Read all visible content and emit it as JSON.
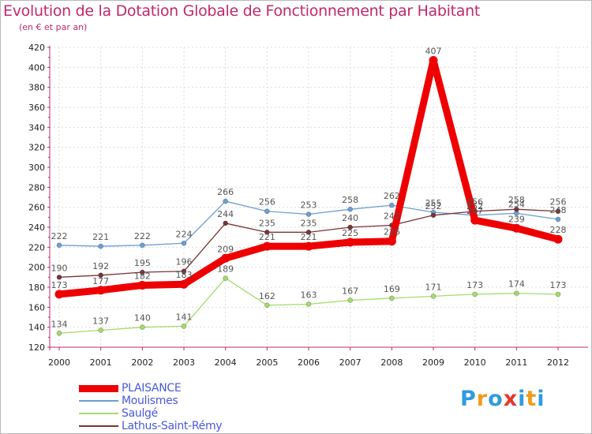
{
  "title": "Evolution de la Dotation Globale de Fonctionnement par Habitant",
  "subtitle": "(en € et par an)",
  "brand": {
    "letters": [
      "P",
      "r",
      "o",
      "x",
      "i",
      "t",
      "i"
    ],
    "colors": [
      "#2f9be0",
      "#f29a1b",
      "#2f9be0",
      "#e8362c",
      "#2f9be0",
      "#f29a1b",
      "#2f9be0"
    ]
  },
  "chart_data": {
    "type": "line",
    "title": "Evolution de la Dotation Globale de Fonctionnement par Habitant",
    "subtitle": "(en € et par an)",
    "xlabel": "",
    "ylabel": "",
    "x": [
      "2000",
      "2001",
      "2002",
      "2003",
      "2004",
      "2005",
      "2006",
      "2007",
      "2008",
      "2009",
      "2010",
      "2011",
      "2012"
    ],
    "ylim": [
      120,
      420
    ],
    "yticks": [
      120,
      140,
      160,
      180,
      200,
      220,
      240,
      260,
      280,
      300,
      320,
      340,
      360,
      380,
      400,
      420
    ],
    "grid": true,
    "legend_position": "bottom-left",
    "series": [
      {
        "name": "Moulismes",
        "color": "#6c9fd4",
        "values": [
          222,
          221,
          222,
          224,
          266,
          256,
          253,
          258,
          262,
          255,
          252,
          254,
          248
        ],
        "labels": [
          "222",
          "221",
          "222",
          "224",
          "266",
          "256",
          "253",
          "258",
          "262",
          "255",
          "252",
          "254",
          "248"
        ]
      },
      {
        "name": "Saulgé",
        "color": "#a4dc6c",
        "values": [
          134,
          137,
          140,
          141,
          189,
          162,
          163,
          167,
          169,
          171,
          173,
          174,
          173
        ],
        "labels": [
          "134",
          "137",
          "140",
          "141",
          "189",
          "162",
          "163",
          "167",
          "169",
          "171",
          "173",
          "174",
          "173"
        ]
      },
      {
        "name": "Lathus-Saint-Rémy",
        "color": "#7a3438",
        "values": [
          190,
          192,
          195,
          196,
          244,
          235,
          235,
          240,
          242,
          252,
          256,
          258,
          256
        ],
        "labels": [
          "190",
          "192",
          "195",
          "196",
          "244",
          "235",
          "235",
          "240",
          "242",
          "252",
          "256",
          "258",
          "256"
        ]
      },
      {
        "name": "PLAISANCE",
        "color": "#ee0000",
        "values": [
          173,
          177,
          182,
          183,
          209,
          221,
          221,
          225,
          226,
          407,
          247,
          239,
          228
        ],
        "labels": [
          "173",
          "177",
          "182",
          "183",
          "209",
          "221",
          "221",
          "225",
          "226",
          "407",
          "247",
          "239",
          "228"
        ]
      }
    ]
  }
}
